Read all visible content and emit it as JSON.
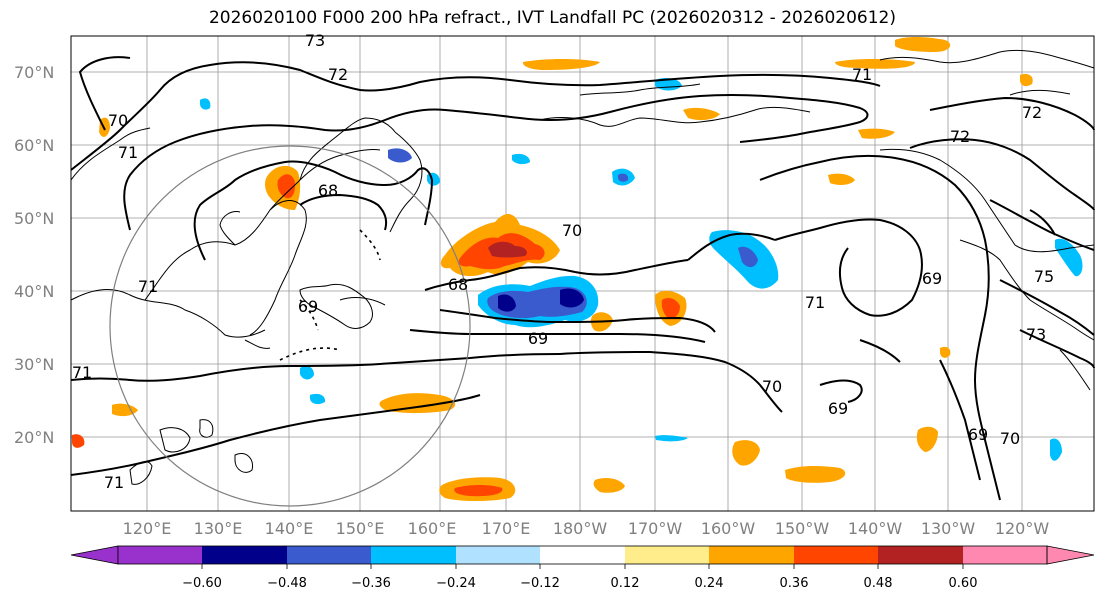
{
  "title": "2026020100 F000 200 hPa refract., IVT Landfall PC (2026020312 - 2026020612)",
  "map": {
    "lat_labels": [
      "70°N",
      "60°N",
      "50°N",
      "40°N",
      "30°N",
      "20°N"
    ],
    "lon_labels": [
      "120°E",
      "130°E",
      "140°E",
      "150°E",
      "160°E",
      "170°E",
      "180°W",
      "170°W",
      "160°W",
      "150°W",
      "140°W",
      "130°W",
      "120°W"
    ],
    "contour_labels": [
      "73",
      "72",
      "71",
      "70",
      "71",
      "72",
      "68",
      "69",
      "70",
      "68",
      "69",
      "71",
      "75",
      "73",
      "69",
      "71",
      "70",
      "69",
      "71",
      "69",
      "70",
      "71",
      "72"
    ],
    "colors": {
      "land_outline": "#000000",
      "grid": "#999999",
      "circle": "#808080"
    }
  },
  "colorbar": {
    "ticks": [
      "−0.60",
      "−0.48",
      "−0.36",
      "−0.24",
      "−0.12",
      "0.12",
      "0.24",
      "0.36",
      "0.48",
      "0.60"
    ],
    "colors": [
      "#9932cc",
      "#00008b",
      "#3a5bcd",
      "#00bfff",
      "#b0e2ff",
      "#ffffff",
      "#ffec8b",
      "#ffa500",
      "#ff4500",
      "#b22222",
      "#ff88b0"
    ]
  }
}
